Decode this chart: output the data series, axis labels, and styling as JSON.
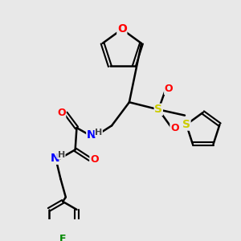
{
  "bg_color": "#e8e8e8",
  "line_color": "#000000",
  "bond_width": 1.8,
  "atom_colors": {
    "O": "#ff0000",
    "N": "#0000ff",
    "S": "#cccc00",
    "F": "#008800",
    "C": "#000000",
    "H": "#444444"
  },
  "font_size": 9,
  "use_rdkit": true
}
